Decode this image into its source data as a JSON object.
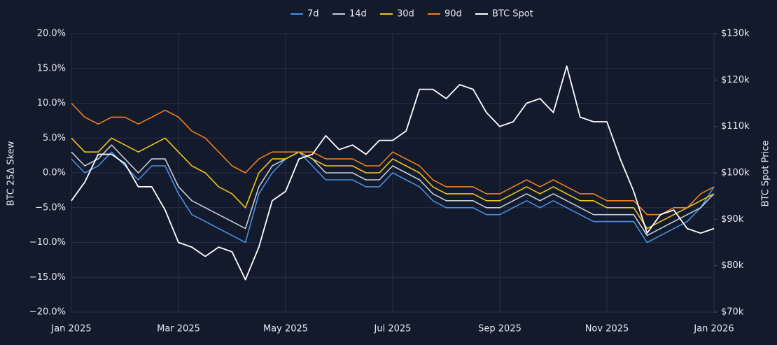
{
  "chart_data": {
    "type": "line",
    "ylabel": "BTC 25Δ Skew",
    "y2label": "BTC Spot Price",
    "x": [
      0,
      0.25,
      0.5,
      0.75,
      1,
      1.25,
      1.5,
      1.75,
      2,
      2.25,
      2.5,
      2.75,
      3,
      3.25,
      3.5,
      3.75,
      4,
      4.25,
      4.5,
      4.75,
      5,
      5.25,
      5.5,
      5.75,
      6,
      6.25,
      6.5,
      6.75,
      7,
      7.25,
      7.5,
      7.75,
      8,
      8.25,
      8.5,
      8.75,
      9,
      9.25,
      9.5,
      9.75,
      10,
      10.25,
      10.5,
      10.75,
      11,
      11.25,
      11.5,
      11.75,
      12
    ],
    "xlim": [
      0,
      12
    ],
    "xticks": [
      {
        "value": 0,
        "label": "Jan 2025"
      },
      {
        "value": 2,
        "label": "Mar 2025"
      },
      {
        "value": 4,
        "label": "May 2025"
      },
      {
        "value": 6,
        "label": "Jul 2025"
      },
      {
        "value": 8,
        "label": "Sep 2025"
      },
      {
        "value": 10,
        "label": "Nov 2025"
      },
      {
        "value": 12,
        "label": "Jan 2026"
      }
    ],
    "ylim": [
      -20,
      20
    ],
    "yticks": [
      {
        "value": -20,
        "label": "−20.0%"
      },
      {
        "value": -15,
        "label": "−15.0%"
      },
      {
        "value": -10,
        "label": "−10.0%"
      },
      {
        "value": -5,
        "label": "−5.0%"
      },
      {
        "value": 0,
        "label": "0.0%"
      },
      {
        "value": 5,
        "label": "5.0%"
      },
      {
        "value": 10,
        "label": "10.0%"
      },
      {
        "value": 15,
        "label": "15.0%"
      },
      {
        "value": 20,
        "label": "20.0%"
      }
    ],
    "y2lim": [
      70000,
      130000
    ],
    "y2ticks": [
      {
        "value": 70000,
        "label": "$70k"
      },
      {
        "value": 80000,
        "label": "$80k"
      },
      {
        "value": 90000,
        "label": "$90k"
      },
      {
        "value": 100000,
        "label": "$100k"
      },
      {
        "value": 110000,
        "label": "$110k"
      },
      {
        "value": 120000,
        "label": "$120k"
      },
      {
        "value": 130000,
        "label": "$130k"
      }
    ],
    "grid": true,
    "legend": "top",
    "series": [
      {
        "name": "7d",
        "color": "#4a8fe0",
        "values": [
          2,
          0,
          1,
          3,
          1,
          -1,
          1,
          1,
          -3,
          -6,
          -7,
          -8,
          -9,
          -10,
          -3,
          0,
          2,
          3,
          1,
          -1,
          -1,
          -1,
          -2,
          -2,
          0,
          -1,
          -2,
          -4,
          -5,
          -5,
          -5,
          -6,
          -6,
          -5,
          -4,
          -5,
          -4,
          -5,
          -6,
          -7,
          -7,
          -7,
          -7,
          -10,
          -9,
          -8,
          -7,
          -5,
          -2
        ]
      },
      {
        "name": "14d",
        "color": "#c5ccd8",
        "values": [
          3,
          1,
          2,
          4,
          2,
          0,
          2,
          2,
          -2,
          -4,
          -5,
          -6,
          -7,
          -8,
          -2,
          1,
          2,
          3,
          2,
          0,
          0,
          0,
          -1,
          -1,
          1,
          0,
          -1,
          -3,
          -4,
          -4,
          -4,
          -5,
          -5,
          -4,
          -3,
          -4,
          -3,
          -4,
          -5,
          -6,
          -6,
          -6,
          -6,
          -9,
          -8,
          -7,
          -6,
          -5,
          -3
        ]
      },
      {
        "name": "30d",
        "color": "#f0c419",
        "values": [
          5,
          3,
          3,
          5,
          4,
          3,
          4,
          5,
          3,
          1,
          0,
          -2,
          -3,
          -5,
          0,
          2,
          2,
          3,
          2,
          1,
          1,
          1,
          0,
          0,
          2,
          1,
          0,
          -2,
          -3,
          -3,
          -3,
          -4,
          -4,
          -3,
          -2,
          -3,
          -2,
          -3,
          -4,
          -4,
          -5,
          -5,
          -5,
          -8,
          -7,
          -6,
          -5,
          -4,
          -3
        ]
      },
      {
        "name": "90d",
        "color": "#f07f1a",
        "values": [
          10,
          8,
          7,
          8,
          8,
          7,
          8,
          9,
          8,
          6,
          5,
          3,
          1,
          0,
          2,
          3,
          3,
          3,
          3,
          2,
          2,
          2,
          1,
          1,
          3,
          2,
          1,
          -1,
          -2,
          -2,
          -2,
          -3,
          -3,
          -2,
          -1,
          -2,
          -1,
          -2,
          -3,
          -3,
          -4,
          -4,
          -4,
          -6,
          -6,
          -5,
          -5,
          -3,
          -2
        ]
      },
      {
        "name": "BTC Spot",
        "color": "#ffffff",
        "axis": "y2",
        "values": [
          94000,
          98000,
          104000,
          104000,
          102000,
          97000,
          97000,
          92000,
          85000,
          84000,
          82000,
          84000,
          83000,
          77000,
          84000,
          94000,
          96000,
          103000,
          104000,
          108000,
          105000,
          106000,
          104000,
          107000,
          107000,
          109000,
          118000,
          118000,
          116000,
          119000,
          118000,
          113000,
          110000,
          111000,
          115000,
          116000,
          113000,
          123000,
          112000,
          111000,
          111000,
          103000,
          96000,
          87000,
          91000,
          92000,
          88000,
          87000,
          88000
        ]
      }
    ]
  }
}
